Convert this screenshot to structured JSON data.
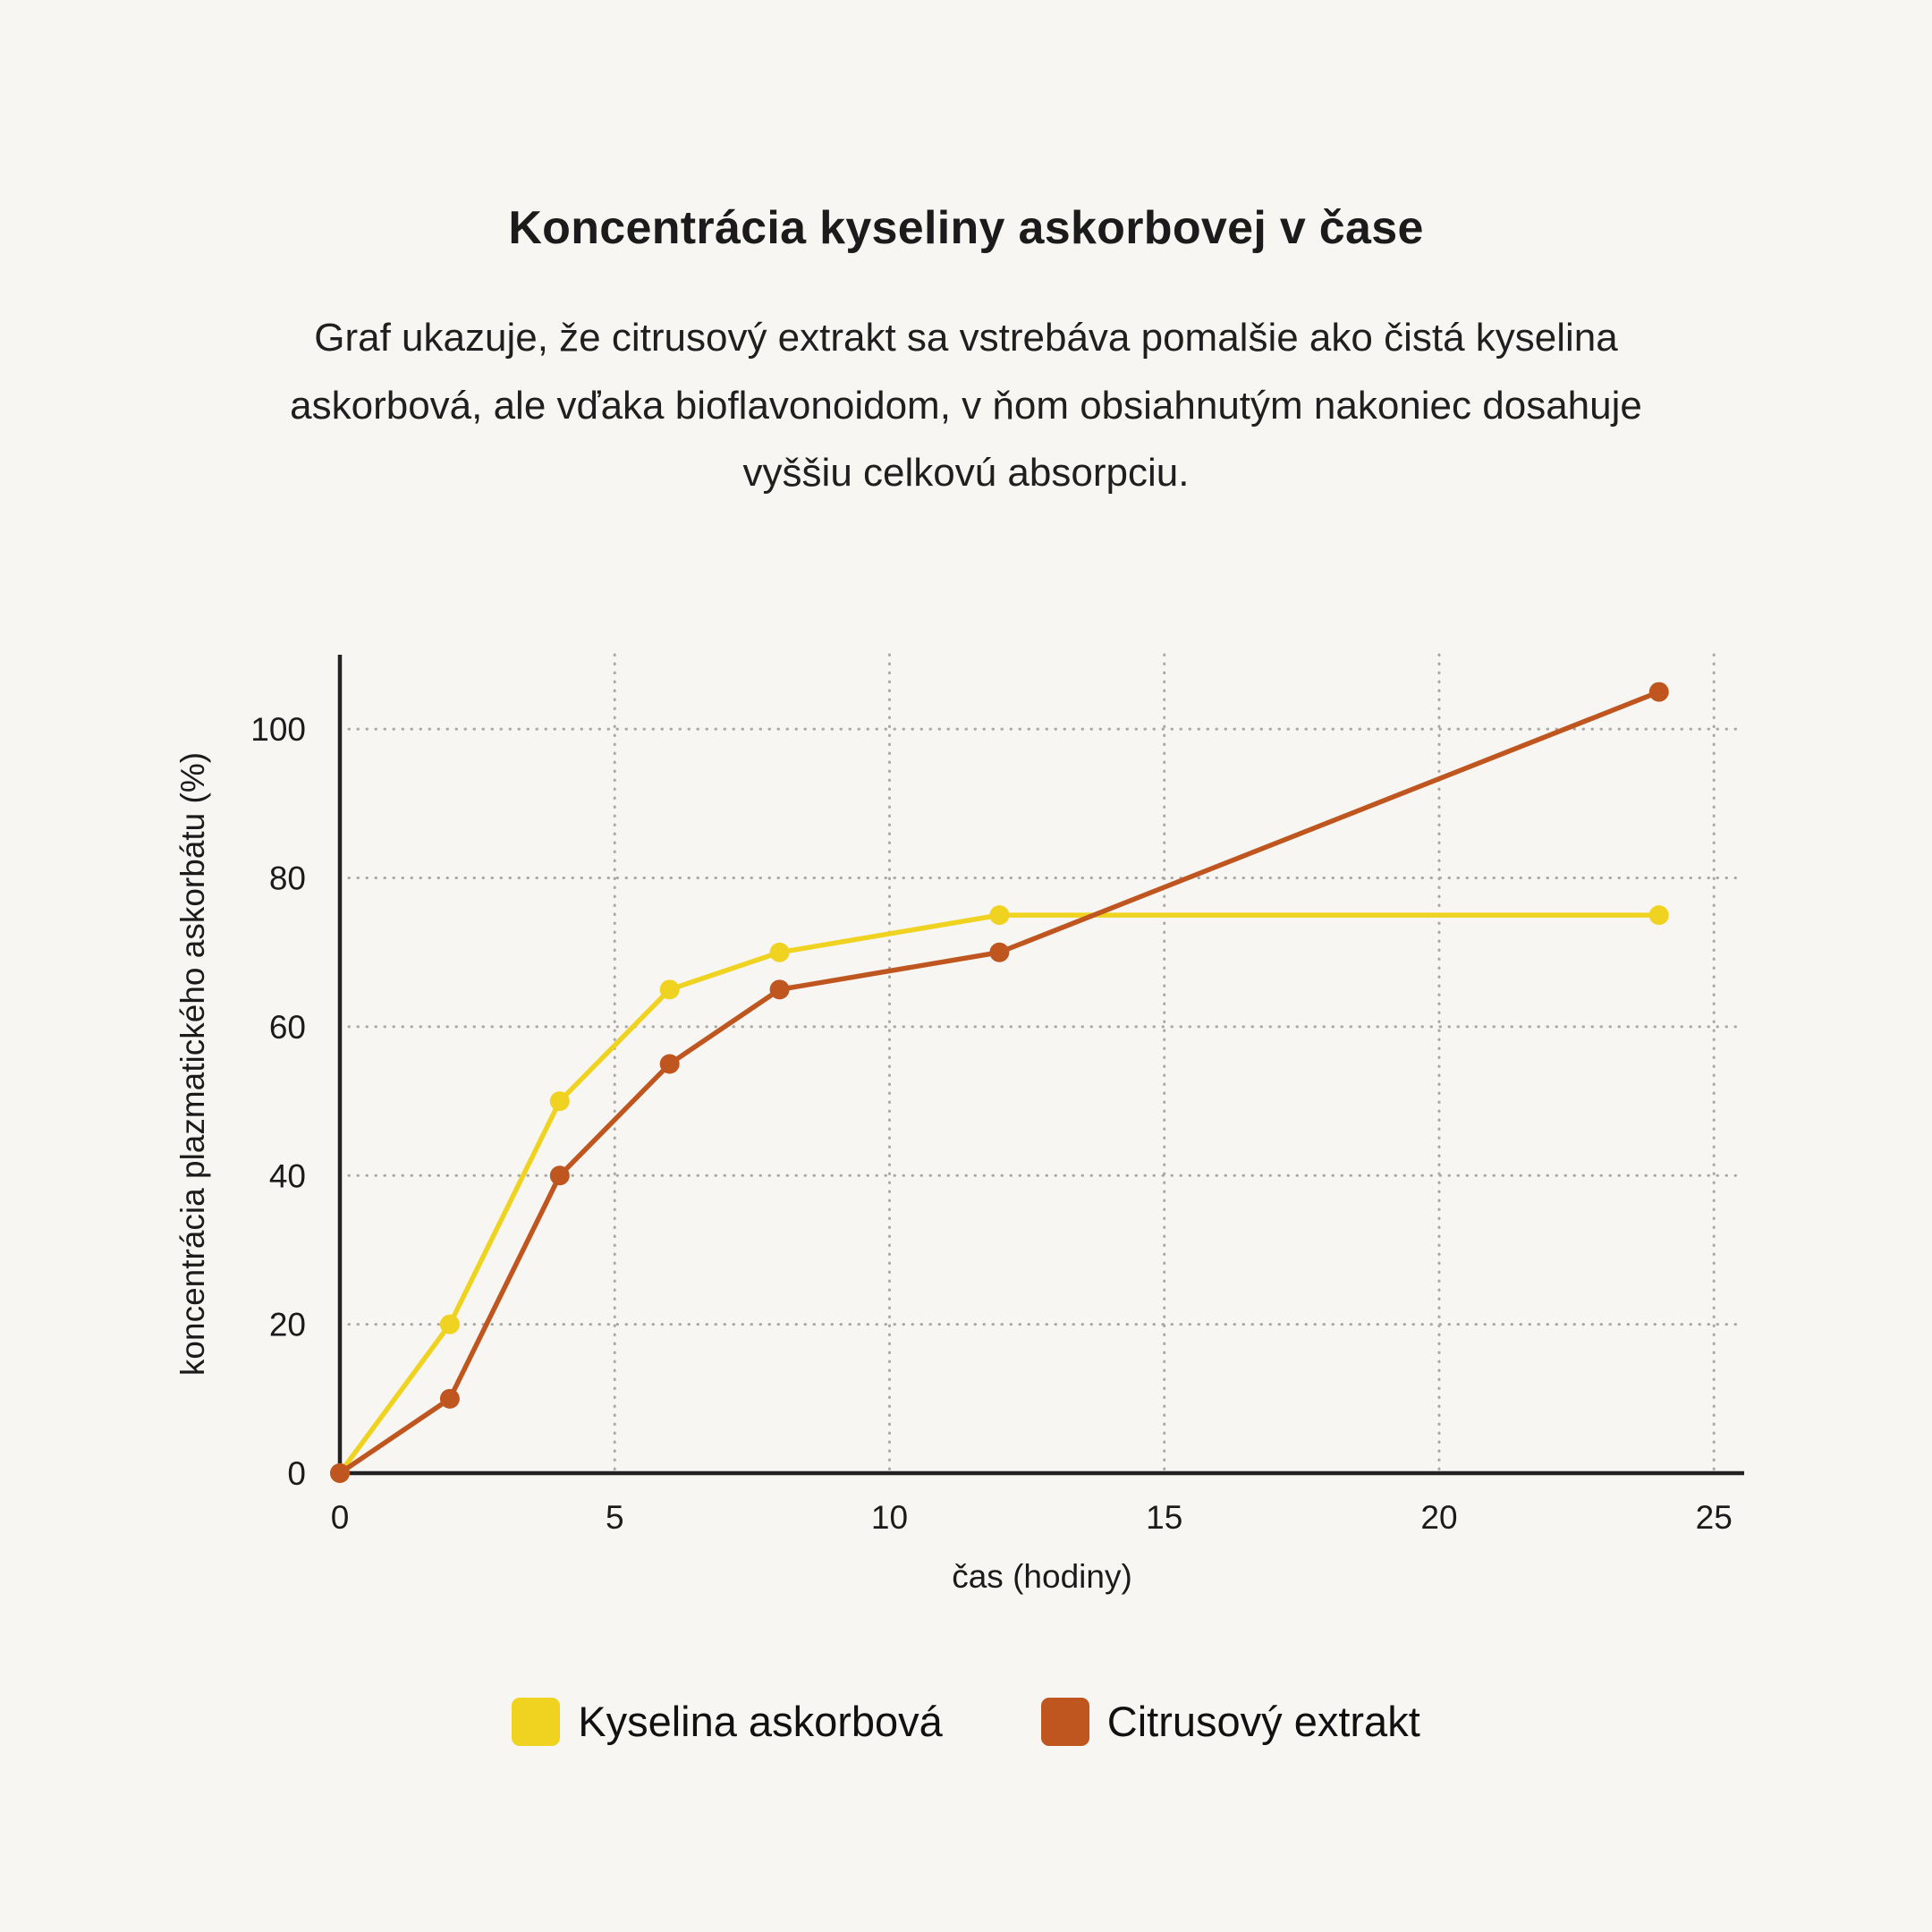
{
  "title": "Koncentrácia kyseliny askorbovej v čase",
  "subtitle": "Graf ukazuje, že citrusový extrakt sa vstrebáva pomalšie ako čistá kyselina askorbová, ale vďaka bioflavonoidom, v ňom obsiahnutým nakoniec dosahuje vyššiu celkovú absorpciu.",
  "chart_data": {
    "type": "line",
    "x": [
      0,
      2,
      4,
      6,
      8,
      12,
      24
    ],
    "series": [
      {
        "name": "Kyselina askorbová",
        "color": "#efd320",
        "values": [
          0,
          20,
          50,
          65,
          70,
          75,
          75
        ]
      },
      {
        "name": "Citrusový extrakt",
        "color": "#c0561f",
        "values": [
          0,
          10,
          40,
          55,
          65,
          70,
          105
        ]
      }
    ],
    "xlabel": "čas (hodiny)",
    "ylabel": "koncentrácia plazmatického askorbátu (%)",
    "xlim": [
      0,
      25
    ],
    "ylim": [
      0,
      110
    ],
    "xticks": [
      0,
      5,
      10,
      15,
      20,
      25
    ],
    "yticks": [
      0,
      20,
      40,
      60,
      80,
      100
    ],
    "grid": true,
    "legend_position": "bottom"
  },
  "style": {
    "background": "#f7f6f3",
    "text_color": "#1b1b1b",
    "grid_color": "#a8a8a8",
    "axis_color": "#222222"
  }
}
